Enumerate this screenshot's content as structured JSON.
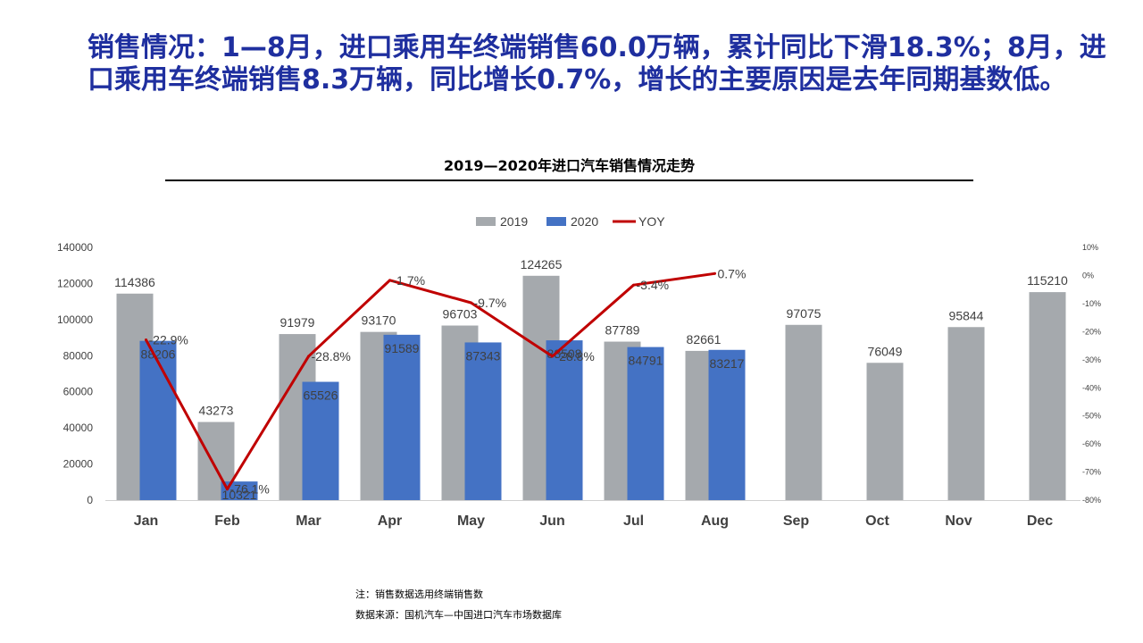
{
  "headline": "销售情况：1—8月，进口乘用车终端销售60.0万辆，累计同比下滑18.3%；8月，进口乘用车终端销售8.3万辆，同比增长0.7%，增长的主要原因是去年同期基数低。",
  "notes": {
    "note1": "注：销售数据选用终端销售数",
    "note2": "数据来源：国机汽车—中国进口汽车市场数据库"
  },
  "colors": {
    "series_2019": "#a5a9ad",
    "series_2020": "#4472c4",
    "yoy": "#c00000",
    "headline": "#1f2f9f"
  },
  "chart_data": {
    "type": "bar",
    "title": "2019—2020年进口汽车销售情况走势",
    "categories": [
      "Jan",
      "Feb",
      "Mar",
      "Apr",
      "May",
      "Jun",
      "Jul",
      "Aug",
      "Sep",
      "Oct",
      "Nov",
      "Dec"
    ],
    "series": [
      {
        "name": "2019",
        "type": "bar",
        "values": [
          114386,
          43273,
          91979,
          93170,
          96703,
          124265,
          87789,
          82661,
          97075,
          76049,
          95844,
          115210
        ]
      },
      {
        "name": "2020",
        "type": "bar",
        "values": [
          88206,
          10321,
          65526,
          91589,
          87343,
          88508,
          84791,
          83217,
          null,
          null,
          null,
          null
        ]
      },
      {
        "name": "YOY",
        "type": "line",
        "axis": "secondary",
        "values": [
          -22.9,
          -76.1,
          -28.8,
          -1.7,
          -9.7,
          -28.8,
          -3.4,
          0.7,
          null,
          null,
          null,
          null
        ],
        "labels": [
          "-22.9%",
          "-76.1%",
          "-28.8%",
          "-1.7%",
          "-9.7%",
          "-28.8%",
          "-3.4%",
          "0.7%",
          null,
          null,
          null,
          null
        ]
      }
    ],
    "y_axis": {
      "ylim": [
        0,
        140000
      ],
      "ticks": [
        "0",
        "20000",
        "40000",
        "60000",
        "80000",
        "100000",
        "120000",
        "140000"
      ]
    },
    "y2_axis": {
      "ylim": [
        -80,
        10
      ],
      "ticks": [
        "10%",
        "0%",
        "-10%",
        "-20%",
        "-30%",
        "-40%",
        "-50%",
        "-60%",
        "-70%",
        "-80%"
      ]
    },
    "legend_position": "top-center",
    "grid": false
  }
}
